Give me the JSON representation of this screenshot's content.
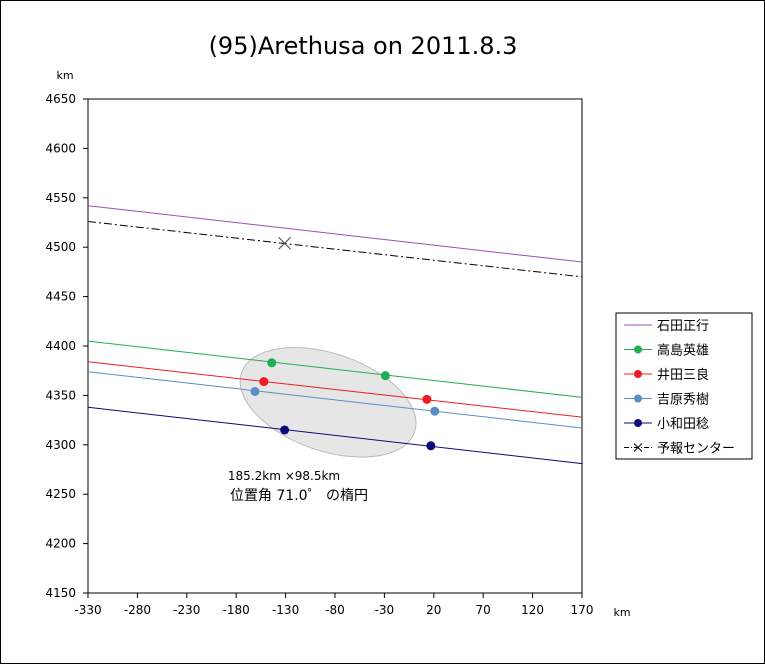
{
  "chart_data": {
    "type": "line",
    "title": "(95)Arethusa on 2011.8.3",
    "x_unit": "km",
    "y_unit": "km",
    "xlim": [
      -330,
      170
    ],
    "ylim": [
      4150,
      4650
    ],
    "x_ticks": [
      -330,
      -280,
      -230,
      -180,
      -130,
      -80,
      -30,
      20,
      70,
      120,
      170
    ],
    "y_ticks": [
      4150,
      4200,
      4250,
      4300,
      4350,
      4400,
      4450,
      4500,
      4550,
      4600,
      4650
    ],
    "series": [
      {
        "name": "石田正行",
        "color": "#9b4fb4",
        "style": "solid",
        "line": [
          [
            -330,
            4542
          ],
          [
            170,
            4485
          ]
        ],
        "points": []
      },
      {
        "name": "高島英雄",
        "color": "#1fae54",
        "style": "solid",
        "line": [
          [
            -330,
            4405
          ],
          [
            170,
            4348
          ]
        ],
        "points": [
          [
            -144,
            4383
          ],
          [
            -29,
            4370
          ]
        ]
      },
      {
        "name": "井田三良",
        "color": "#ee1c24",
        "style": "solid",
        "line": [
          [
            -330,
            4384
          ],
          [
            170,
            4328
          ]
        ],
        "points": [
          [
            -152,
            4364
          ],
          [
            13,
            4346
          ]
        ]
      },
      {
        "name": "吉原秀樹",
        "color": "#5b8ec7",
        "style": "solid",
        "line": [
          [
            -330,
            4374
          ],
          [
            170,
            4317
          ]
        ],
        "points": [
          [
            -161,
            4354
          ],
          [
            21,
            4334
          ]
        ]
      },
      {
        "name": "小和田稔",
        "color": "#0a0a7a",
        "style": "solid",
        "line": [
          [
            -330,
            4338
          ],
          [
            170,
            4281
          ]
        ],
        "points": [
          [
            -131,
            4315
          ],
          [
            17,
            4299
          ]
        ]
      },
      {
        "name": "予報センター",
        "color": "#000000",
        "style": "dashdot",
        "line": [
          [
            -330,
            4526
          ],
          [
            170,
            4470
          ]
        ],
        "points": [
          [
            -131,
            4504
          ]
        ],
        "marker": "x"
      }
    ],
    "ellipse": {
      "cx": -87,
      "cy": 4343,
      "rx": 92.6,
      "ry": 49.25,
      "rotation_deg": 19,
      "fill": "#e6e6e6"
    },
    "annotation": [
      "185.2km  ×98.5km",
      "位置角 71.0゜ の楕円"
    ]
  }
}
